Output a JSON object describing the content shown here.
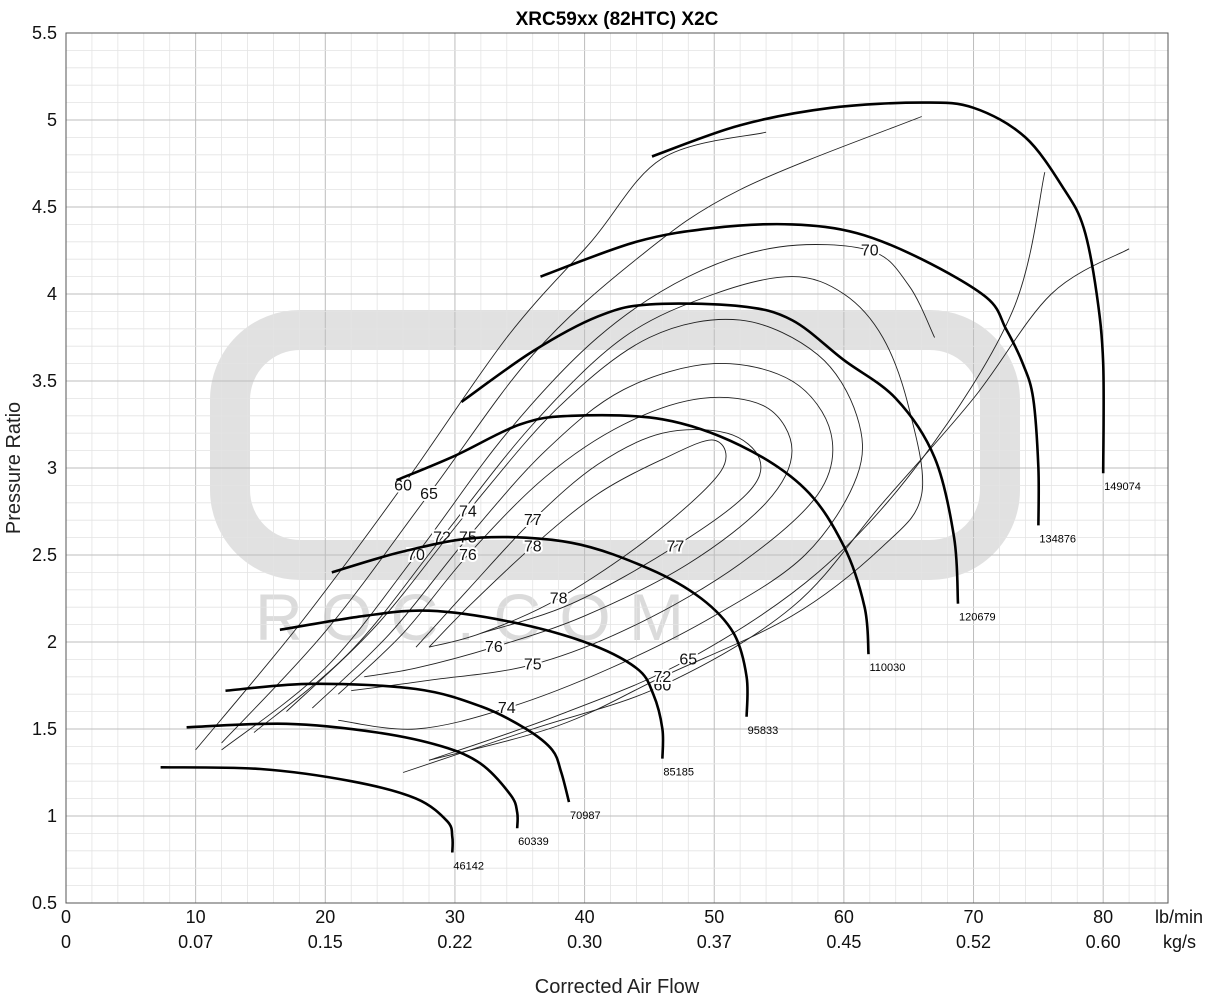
{
  "chart_data": {
    "type": "line",
    "title": "XRC59xx (82HTC) X2C",
    "xlabel": "Corrected Air Flow",
    "ylabel": "Pressure Ratio",
    "x_unit_primary": "lb/min",
    "x_unit_secondary": "kg/s",
    "xlim": [
      0,
      85
    ],
    "ylim": [
      0.5,
      5.5
    ],
    "x_ticks": [
      0,
      10,
      20,
      30,
      40,
      50,
      60,
      70,
      80
    ],
    "x_ticks_kgs": [
      "0",
      "0.07",
      "0.15",
      "0.22",
      "0.30",
      "0.37",
      "0.45",
      "0.52",
      "0.60"
    ],
    "y_ticks": [
      "0.5",
      "1",
      "1.5",
      "2",
      "2.5",
      "3",
      "3.5",
      "4",
      "4.5",
      "5",
      "5.5"
    ],
    "grid": true,
    "watermark": {
      "text": "R O C . C O M",
      "color": "#f2b8b8"
    },
    "speed_lines": [
      {
        "name": "46142",
        "points": [
          [
            7.3,
            1.28
          ],
          [
            15,
            1.27
          ],
          [
            22,
            1.2
          ],
          [
            27,
            1.1
          ],
          [
            29.4,
            0.97
          ],
          [
            29.8,
            0.88
          ],
          [
            29.8,
            0.79
          ]
        ]
      },
      {
        "name": "60339",
        "points": [
          [
            9.3,
            1.51
          ],
          [
            17,
            1.53
          ],
          [
            24,
            1.48
          ],
          [
            29,
            1.4
          ],
          [
            32,
            1.3
          ],
          [
            34.3,
            1.12
          ],
          [
            34.8,
            1.02
          ],
          [
            34.8,
            0.93
          ]
        ]
      },
      {
        "name": "70987",
        "points": [
          [
            12.3,
            1.72
          ],
          [
            19,
            1.76
          ],
          [
            27,
            1.73
          ],
          [
            32,
            1.63
          ],
          [
            35.5,
            1.5
          ],
          [
            37.5,
            1.38
          ],
          [
            38.2,
            1.25
          ],
          [
            38.8,
            1.08
          ]
        ]
      },
      {
        "name": "85185",
        "points": [
          [
            16.5,
            2.07
          ],
          [
            23,
            2.15
          ],
          [
            28,
            2.18
          ],
          [
            34,
            2.12
          ],
          [
            40,
            2.0
          ],
          [
            44,
            1.85
          ],
          [
            45.3,
            1.7
          ],
          [
            46,
            1.5
          ],
          [
            46,
            1.33
          ]
        ]
      },
      {
        "name": "95833",
        "points": [
          [
            20.5,
            2.4
          ],
          [
            26,
            2.52
          ],
          [
            32,
            2.6
          ],
          [
            39,
            2.57
          ],
          [
            45,
            2.42
          ],
          [
            49,
            2.25
          ],
          [
            51.5,
            2.05
          ],
          [
            52.5,
            1.8
          ],
          [
            52.5,
            1.57
          ]
        ]
      },
      {
        "name": "110030",
        "points": [
          [
            25.5,
            2.93
          ],
          [
            30,
            3.07
          ],
          [
            35,
            3.25
          ],
          [
            39,
            3.3
          ],
          [
            46,
            3.28
          ],
          [
            52,
            3.13
          ],
          [
            57,
            2.88
          ],
          [
            60,
            2.55
          ],
          [
            61.6,
            2.2
          ],
          [
            61.9,
            1.93
          ]
        ]
      },
      {
        "name": "120679",
        "points": [
          [
            30.5,
            3.38
          ],
          [
            36,
            3.67
          ],
          [
            41,
            3.87
          ],
          [
            45,
            3.94
          ],
          [
            52,
            3.93
          ],
          [
            56,
            3.85
          ],
          [
            60,
            3.62
          ],
          [
            64,
            3.4
          ],
          [
            67,
            3.06
          ],
          [
            68.5,
            2.6
          ],
          [
            68.8,
            2.22
          ]
        ]
      },
      {
        "name": "134876",
        "points": [
          [
            36.6,
            4.1
          ],
          [
            44,
            4.3
          ],
          [
            50,
            4.38
          ],
          [
            56,
            4.4
          ],
          [
            61,
            4.35
          ],
          [
            66,
            4.2
          ],
          [
            71,
            3.98
          ],
          [
            72.5,
            3.8
          ],
          [
            73.8,
            3.6
          ],
          [
            74.6,
            3.4
          ],
          [
            75,
            3.0
          ],
          [
            75,
            2.67
          ]
        ]
      },
      {
        "name": "149074",
        "points": [
          [
            45.2,
            4.79
          ],
          [
            52,
            4.97
          ],
          [
            59,
            5.07
          ],
          [
            66,
            5.1
          ],
          [
            70,
            5.07
          ],
          [
            74,
            4.9
          ],
          [
            77,
            4.6
          ],
          [
            78.5,
            4.38
          ],
          [
            79.5,
            4.0
          ],
          [
            80,
            3.6
          ],
          [
            80,
            2.97
          ]
        ]
      }
    ],
    "efficiency_islands": [
      {
        "name": "60",
        "labels": [
          "60",
          "60",
          "60",
          "60",
          "60",
          "60"
        ],
        "points": [
          [
            10,
            1.38
          ],
          [
            18,
            2.1
          ],
          [
            26,
            2.9
          ],
          [
            34,
            3.75
          ],
          [
            40.5,
            4.3
          ],
          [
            46,
            4.78
          ],
          [
            54,
            4.93
          ]
        ],
        "points2": [
          [
            26,
            1.25
          ],
          [
            36,
            1.5
          ],
          [
            46,
            1.75
          ],
          [
            56,
            2.2
          ],
          [
            63,
            2.8
          ],
          [
            70,
            3.4
          ],
          [
            76,
            4.0
          ],
          [
            82,
            4.26
          ]
        ]
      },
      {
        "name": "65",
        "labels": [
          "65",
          "65",
          "65"
        ],
        "points": [
          [
            12,
            1.42
          ],
          [
            20,
            2.06
          ],
          [
            28,
            2.85
          ],
          [
            36,
            3.65
          ],
          [
            44,
            4.2
          ],
          [
            52,
            4.6
          ],
          [
            66,
            5.02
          ]
        ],
        "points2": [
          [
            28,
            1.32
          ],
          [
            38,
            1.58
          ],
          [
            48,
            1.9
          ],
          [
            58,
            2.4
          ],
          [
            66,
            3.05
          ],
          [
            73,
            3.9
          ],
          [
            75.5,
            4.7
          ]
        ]
      }
    ],
    "efficiency_contours": [
      {
        "name": "70",
        "points": [
          [
            12,
            1.38
          ],
          [
            20,
            1.85
          ],
          [
            27,
            2.5
          ],
          [
            34,
            3.2
          ],
          [
            41,
            3.75
          ],
          [
            48,
            4.1
          ],
          [
            55,
            4.27
          ],
          [
            62,
            4.25
          ],
          [
            65,
            4.05
          ],
          [
            67,
            3.75
          ]
        ]
      },
      {
        "name": "72",
        "points": [
          [
            14.5,
            1.48
          ],
          [
            22,
            1.95
          ],
          [
            29,
            2.6
          ],
          [
            36,
            3.25
          ],
          [
            43,
            3.75
          ],
          [
            50,
            4.0
          ],
          [
            56,
            4.1
          ],
          [
            60,
            4.0
          ],
          [
            63,
            3.75
          ],
          [
            65,
            3.35
          ],
          [
            66,
            2.85
          ],
          [
            63,
            2.55
          ],
          [
            56,
            2.15
          ],
          [
            46,
            1.8
          ],
          [
            38,
            1.52
          ],
          [
            28,
            1.32
          ]
        ]
      },
      {
        "name": "74",
        "points": [
          [
            17,
            1.6
          ],
          [
            24,
            2.1
          ],
          [
            31,
            2.75
          ],
          [
            38,
            3.35
          ],
          [
            45,
            3.75
          ],
          [
            52,
            3.85
          ],
          [
            58,
            3.65
          ],
          [
            61,
            3.3
          ],
          [
            61,
            2.95
          ],
          [
            57,
            2.5
          ],
          [
            50,
            2.15
          ],
          [
            42,
            1.85
          ],
          [
            34,
            1.62
          ],
          [
            27,
            1.5
          ],
          [
            21,
            1.55
          ]
        ]
      },
      {
        "name": "75",
        "points": [
          [
            19,
            1.62
          ],
          [
            25,
            2.05
          ],
          [
            31,
            2.6
          ],
          [
            37,
            3.1
          ],
          [
            43,
            3.45
          ],
          [
            50,
            3.6
          ],
          [
            56,
            3.5
          ],
          [
            59,
            3.2
          ],
          [
            58,
            2.85
          ],
          [
            52,
            2.45
          ],
          [
            44,
            2.1
          ],
          [
            36,
            1.87
          ],
          [
            28,
            1.78
          ],
          [
            22,
            1.72
          ]
        ]
      },
      {
        "name": "76",
        "points": [
          [
            21,
            1.7
          ],
          [
            26,
            2.05
          ],
          [
            31,
            2.5
          ],
          [
            37,
            2.95
          ],
          [
            43,
            3.25
          ],
          [
            49,
            3.4
          ],
          [
            54,
            3.35
          ],
          [
            56,
            3.1
          ],
          [
            54,
            2.8
          ],
          [
            48,
            2.45
          ],
          [
            40,
            2.15
          ],
          [
            33,
            1.97
          ],
          [
            27,
            1.85
          ],
          [
            23,
            1.8
          ]
        ]
      },
      {
        "name": "77",
        "points": [
          [
            27,
            1.97
          ],
          [
            31,
            2.3
          ],
          [
            36,
            2.7
          ],
          [
            41,
            3.02
          ],
          [
            46,
            3.2
          ],
          [
            51,
            3.2
          ],
          [
            53.5,
            3.05
          ],
          [
            52.5,
            2.85
          ],
          [
            47,
            2.55
          ],
          [
            39,
            2.22
          ],
          [
            32,
            2.05
          ]
        ]
      },
      {
        "name": "78",
        "points": [
          [
            28,
            1.97
          ],
          [
            31,
            2.2
          ],
          [
            36,
            2.55
          ],
          [
            41,
            2.85
          ],
          [
            46,
            3.05
          ],
          [
            50,
            3.16
          ],
          [
            50.5,
            2.98
          ],
          [
            45,
            2.6
          ],
          [
            38,
            2.25
          ],
          [
            32,
            2.05
          ],
          [
            28,
            1.97
          ]
        ]
      }
    ]
  }
}
